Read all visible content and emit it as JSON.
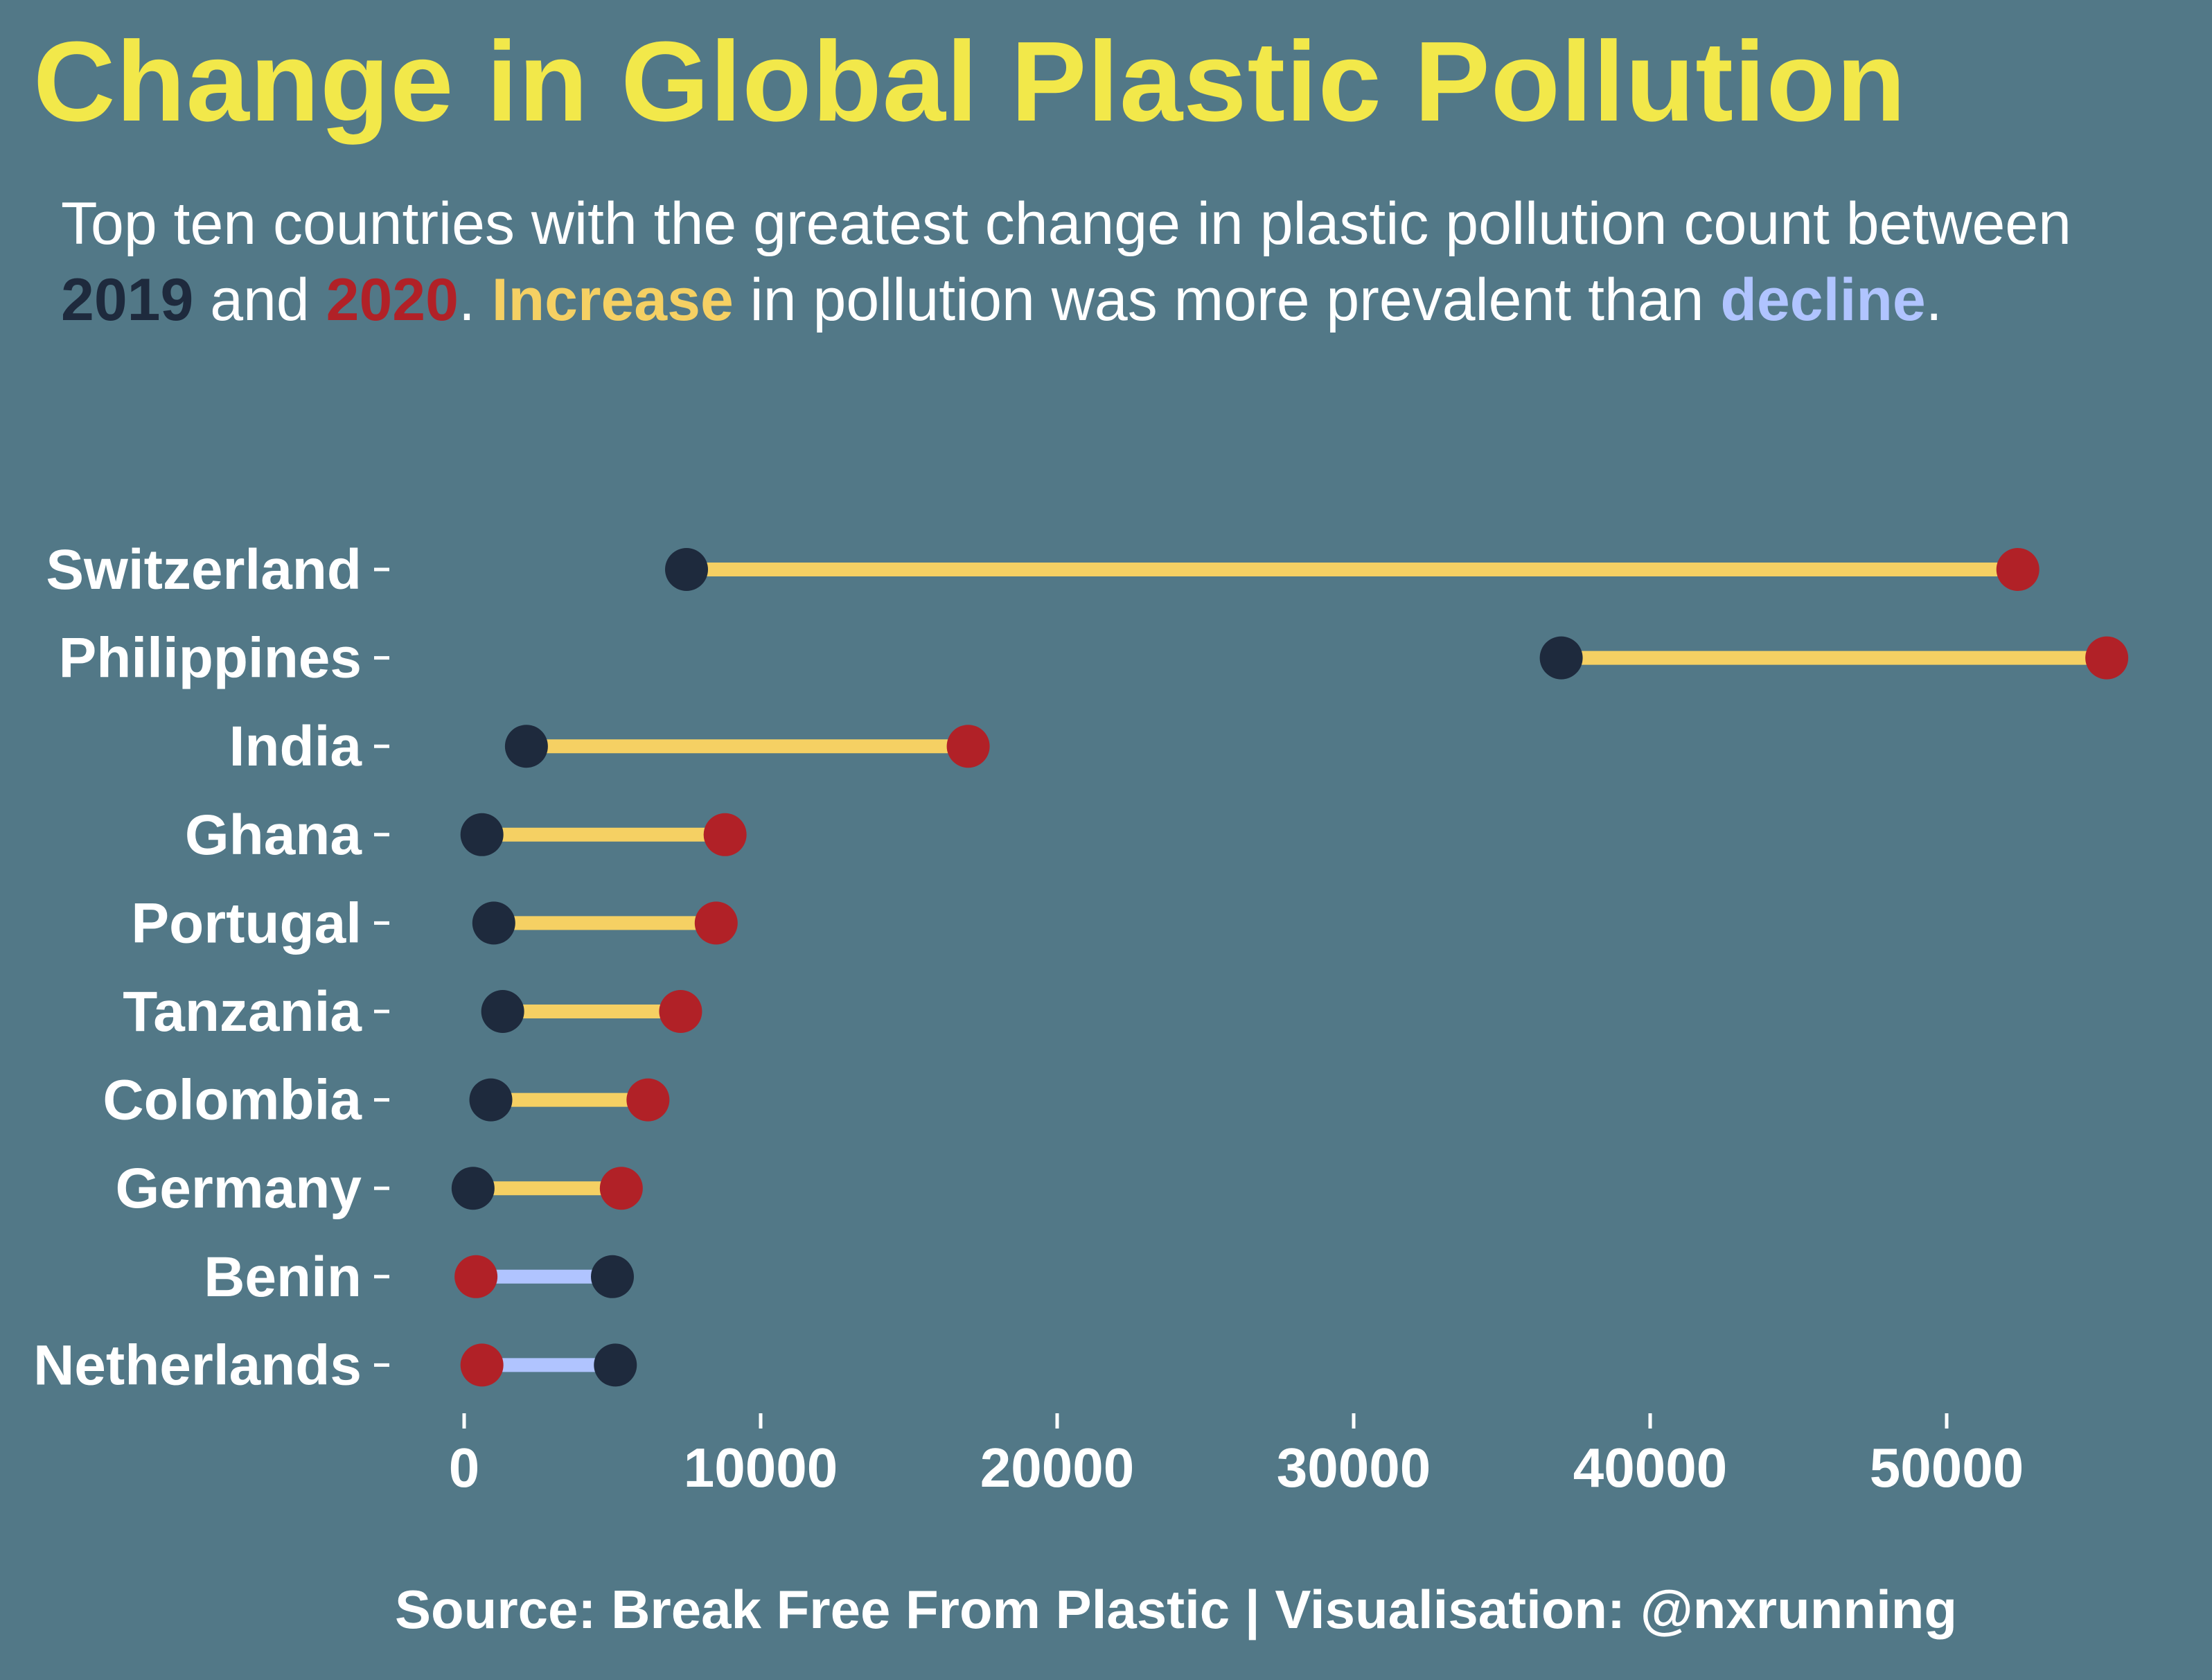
{
  "title": "Change in Global Plastic Pollution",
  "subtitle": {
    "part1": "Top ten countries with the greatest change in plastic pollution count between ",
    "y2019": "2019",
    "part2": " and ",
    "y2020": "2020",
    "part3": ". ",
    "increase": "Increase",
    "part4": " in pollution was more prevalent than ",
    "decline": "decline",
    "part5": "."
  },
  "caption": "Source: Break Free From Plastic | Visualisation: @nxrunning",
  "colors": {
    "background": "#527887",
    "title": "#f2e84a",
    "y2019": "#1e2a3d",
    "y2020": "#b12127",
    "increase": "#f5d063",
    "decline": "#b0c4ff"
  },
  "chart_data": {
    "type": "dumbbell",
    "xlim": [
      0,
      57000
    ],
    "x_ticks": [
      0,
      10000,
      20000,
      30000,
      40000,
      50000
    ],
    "x_tick_labels": [
      "0",
      "10000",
      "20000",
      "30000",
      "40000",
      "50000"
    ],
    "categories": [
      "Switzerland",
      "Philippines",
      "India",
      "Ghana",
      "Portugal",
      "Tanzania",
      "Colombia",
      "Germany",
      "Benin",
      "Netherlands"
    ],
    "series": [
      {
        "name": "2019",
        "values": [
          7500,
          37000,
          2100,
          600,
          1000,
          1300,
          900,
          300,
          5000,
          5100
        ]
      },
      {
        "name": "2020",
        "values": [
          52400,
          55400,
          17000,
          8800,
          8500,
          7300,
          6200,
          5300,
          400,
          600
        ]
      }
    ],
    "grid": false
  }
}
